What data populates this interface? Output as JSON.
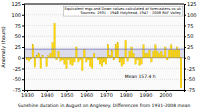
{
  "chart_data": {
    "type": "bar",
    "title": "Equivalent mgs and Down values calculated at forecasters-co.uk\nSources: 1931 - 1946 Holyhead, 1947 - 2008 RAF Valley",
    "x_label": "Sunshine duration in August on Anglesey. Differences from 1931-2008 mean",
    "y_label": "Anomaly (hours)",
    "annotations": [
      "Mean 157.4 h"
    ],
    "mean_line": 20,
    "color": "#FFD700",
    "grid": true,
    "x": [
      1930,
      1931,
      1932,
      1933,
      1934,
      1935,
      1936,
      1937,
      1938,
      1939,
      1940,
      1941,
      1942,
      1943,
      1944,
      1945,
      1946,
      1947,
      1948,
      1949,
      1950,
      1951,
      1952,
      1953,
      1954,
      1955,
      1956,
      1957,
      1958,
      1959,
      1960,
      1961,
      1962,
      1963,
      1964,
      1965,
      1966,
      1967,
      1968,
      1969,
      1970,
      1971,
      1972,
      1973,
      1974,
      1975,
      1976,
      1977,
      1978,
      1979,
      1980,
      1981,
      1982,
      1983,
      1984,
      1985,
      1986,
      1987,
      1988,
      1989,
      1990,
      1991,
      1992,
      1993,
      1994,
      1995,
      1996,
      1997,
      1998,
      1999,
      2000,
      2001,
      2002,
      2003,
      2004,
      2005,
      2006,
      2007,
      2008
    ],
    "values": [
      -5,
      -8,
      -3,
      30,
      -22,
      5,
      10,
      -25,
      5,
      0,
      -20,
      5,
      10,
      35,
      80,
      -5,
      15,
      -8,
      -5,
      -15,
      -25,
      -5,
      -15,
      -18,
      -10,
      25,
      -10,
      -5,
      -30,
      20,
      -10,
      -5,
      -20,
      -25,
      10,
      0,
      -5,
      -15,
      -20,
      -10,
      -15,
      30,
      5,
      18,
      -5,
      30,
      35,
      -10,
      -20,
      -15,
      40,
      -8,
      15,
      25,
      10,
      -15,
      -5,
      -18,
      -15,
      30,
      10,
      10,
      18,
      -10,
      15,
      30,
      15,
      10,
      15,
      5,
      25,
      -5,
      18,
      30,
      18,
      18,
      25,
      20,
      -70
    ],
    "xlim": [
      1928.5,
      2009.5
    ],
    "xticks": [
      1930,
      1940,
      1950,
      1960,
      1970,
      1980,
      1990,
      2000
    ],
    "ylim": [
      -75,
      125
    ],
    "yticks": [
      -75,
      -50,
      -25,
      0,
      25,
      50,
      75,
      100,
      125
    ],
    "y2lim": [
      -75,
      125
    ],
    "y2ticks": [
      -75,
      -50,
      -25,
      0,
      25,
      50,
      75,
      100,
      125
    ]
  }
}
